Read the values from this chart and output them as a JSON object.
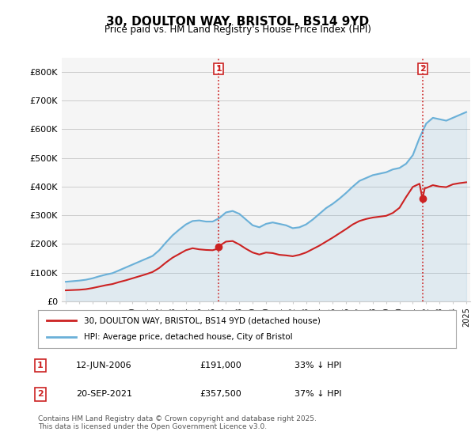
{
  "title": "30, DOULTON WAY, BRISTOL, BS14 9YD",
  "subtitle": "Price paid vs. HM Land Registry's House Price Index (HPI)",
  "ylabel": "",
  "ylim": [
    0,
    850000
  ],
  "yticks": [
    0,
    100000,
    200000,
    300000,
    400000,
    500000,
    600000,
    700000,
    800000
  ],
  "ytick_labels": [
    "£0",
    "£100K",
    "£200K",
    "£300K",
    "£400K",
    "£500K",
    "£600K",
    "£700K",
    "£800K"
  ],
  "hpi_color": "#6ab0d8",
  "property_color": "#cc2222",
  "vline_color": "#cc2222",
  "vline_style": ":",
  "background_color": "#f5f5f5",
  "grid_color": "#cccccc",
  "legend_label_property": "30, DOULTON WAY, BRISTOL, BS14 9YD (detached house)",
  "legend_label_hpi": "HPI: Average price, detached house, City of Bristol",
  "annotation1_label": "1",
  "annotation1_date": "12-JUN-2006",
  "annotation1_price": "£191,000",
  "annotation1_hpi": "33% ↓ HPI",
  "annotation2_label": "2",
  "annotation2_date": "20-SEP-2021",
  "annotation2_price": "£357,500",
  "annotation2_hpi": "37% ↓ HPI",
  "footer": "Contains HM Land Registry data © Crown copyright and database right 2025.\nThis data is licensed under the Open Government Licence v3.0.",
  "x_start_year": 1995,
  "x_end_year": 2025,
  "sale1_year": 2006.45,
  "sale1_price": 191000,
  "sale2_year": 2021.72,
  "sale2_price": 357500,
  "hpi_years": [
    1995,
    1995.5,
    1996,
    1996.5,
    1997,
    1997.5,
    1998,
    1998.5,
    1999,
    1999.5,
    2000,
    2000.5,
    2001,
    2001.5,
    2002,
    2002.5,
    2003,
    2003.5,
    2004,
    2004.5,
    2005,
    2005.5,
    2006,
    2006.5,
    2007,
    2007.5,
    2008,
    2008.5,
    2009,
    2009.5,
    2010,
    2010.5,
    2011,
    2011.5,
    2012,
    2012.5,
    2013,
    2013.5,
    2014,
    2014.5,
    2015,
    2015.5,
    2016,
    2016.5,
    2017,
    2017.5,
    2018,
    2018.5,
    2019,
    2019.5,
    2020,
    2020.5,
    2021,
    2021.5,
    2022,
    2022.5,
    2023,
    2023.5,
    2024,
    2024.5,
    2025
  ],
  "hpi_values": [
    68000,
    70000,
    72000,
    75000,
    80000,
    87000,
    93000,
    98000,
    108000,
    118000,
    128000,
    138000,
    148000,
    158000,
    178000,
    205000,
    230000,
    250000,
    268000,
    280000,
    282000,
    278000,
    278000,
    290000,
    310000,
    315000,
    305000,
    285000,
    265000,
    258000,
    270000,
    275000,
    270000,
    265000,
    255000,
    258000,
    268000,
    285000,
    305000,
    325000,
    340000,
    358000,
    378000,
    400000,
    420000,
    430000,
    440000,
    445000,
    450000,
    460000,
    465000,
    480000,
    510000,
    570000,
    620000,
    640000,
    635000,
    630000,
    640000,
    650000,
    660000
  ],
  "prop_years": [
    1995,
    1995.5,
    1996,
    1996.5,
    1997,
    1997.5,
    1998,
    1998.5,
    1999,
    1999.5,
    2000,
    2000.5,
    2001,
    2001.5,
    2002,
    2002.5,
    2003,
    2003.5,
    2004,
    2004.5,
    2005,
    2005.5,
    2006,
    2006.3,
    2006.45,
    2006.6,
    2007,
    2007.5,
    2008,
    2008.5,
    2009,
    2009.5,
    2010,
    2010.5,
    2011,
    2011.5,
    2012,
    2012.5,
    2013,
    2013.5,
    2014,
    2014.5,
    2015,
    2015.5,
    2016,
    2016.5,
    2017,
    2017.5,
    2018,
    2018.5,
    2019,
    2019.5,
    2020,
    2020.5,
    2021,
    2021.5,
    2021.72,
    2021.9,
    2022,
    2022.5,
    2023,
    2023.5,
    2024,
    2024.5,
    2025
  ],
  "prop_values": [
    38000,
    39000,
    40000,
    42000,
    46000,
    51000,
    56000,
    60000,
    67000,
    73000,
    80000,
    87000,
    94000,
    102000,
    116000,
    135000,
    152000,
    165000,
    178000,
    185000,
    181000,
    179000,
    178000,
    182000,
    191000,
    196000,
    208000,
    210000,
    198000,
    183000,
    170000,
    163000,
    170000,
    168000,
    162000,
    160000,
    157000,
    162000,
    170000,
    182000,
    194000,
    208000,
    222000,
    237000,
    252000,
    268000,
    280000,
    287000,
    292000,
    295000,
    298000,
    308000,
    326000,
    364000,
    399000,
    410000,
    357500,
    395000,
    395000,
    405000,
    400000,
    398000,
    408000,
    412000,
    415000
  ]
}
